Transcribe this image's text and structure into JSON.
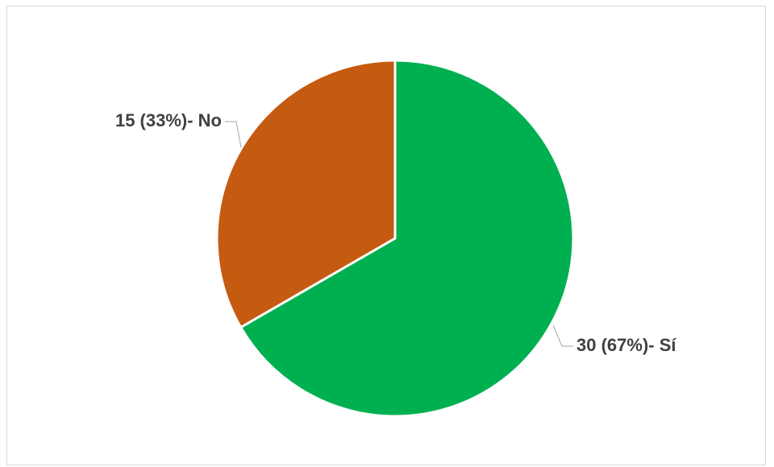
{
  "chart_data": {
    "type": "pie",
    "title": "",
    "legend": "none",
    "slices": [
      {
        "label": "Sí",
        "value": 30,
        "percent": 67,
        "color": "#00b050",
        "data_label": "30 (67%)- Sí"
      },
      {
        "label": "No",
        "value": 15,
        "percent": 33,
        "color": "#c55a11",
        "data_label": "15 (33%)- No"
      }
    ]
  }
}
